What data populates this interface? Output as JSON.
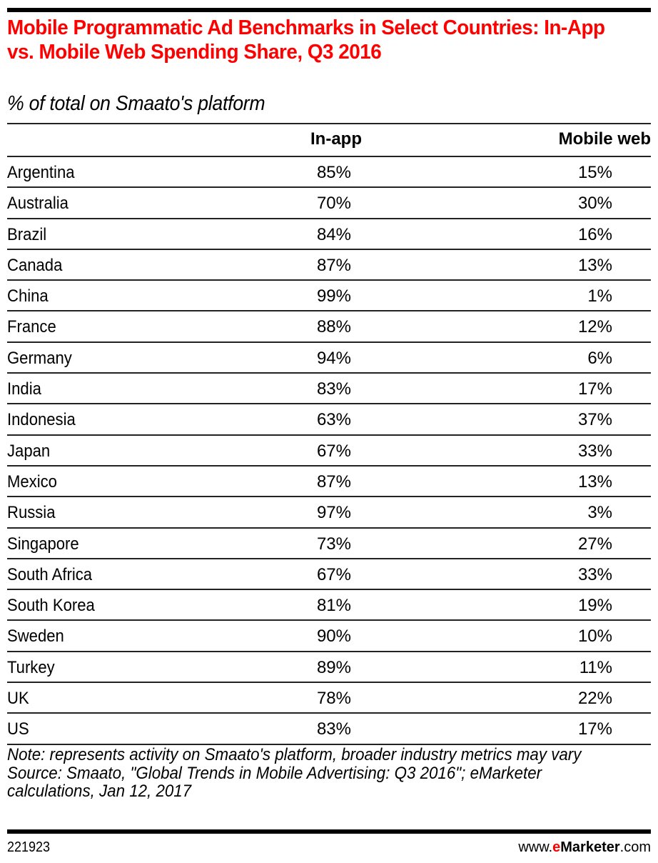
{
  "header": {
    "title": "Mobile Programmatic Ad Benchmarks in Select Countries: In-App vs. Mobile Web Spending Share, Q3 2016",
    "subtitle": "% of total on Smaato's platform"
  },
  "table": {
    "columns": [
      "",
      "In-app",
      "Mobile web"
    ],
    "rows": [
      {
        "country": "Argentina",
        "in_app": "85%",
        "mobile_web": "15%"
      },
      {
        "country": "Australia",
        "in_app": "70%",
        "mobile_web": "30%"
      },
      {
        "country": "Brazil",
        "in_app": "84%",
        "mobile_web": "16%"
      },
      {
        "country": "Canada",
        "in_app": "87%",
        "mobile_web": "13%"
      },
      {
        "country": "China",
        "in_app": "99%",
        "mobile_web": "1%"
      },
      {
        "country": "France",
        "in_app": "88%",
        "mobile_web": "12%"
      },
      {
        "country": "Germany",
        "in_app": "94%",
        "mobile_web": "6%"
      },
      {
        "country": "India",
        "in_app": "83%",
        "mobile_web": "17%"
      },
      {
        "country": "Indonesia",
        "in_app": "63%",
        "mobile_web": "37%"
      },
      {
        "country": "Japan",
        "in_app": "67%",
        "mobile_web": "33%"
      },
      {
        "country": "Mexico",
        "in_app": "87%",
        "mobile_web": "13%"
      },
      {
        "country": "Russia",
        "in_app": "97%",
        "mobile_web": "3%"
      },
      {
        "country": "Singapore",
        "in_app": "73%",
        "mobile_web": "27%"
      },
      {
        "country": "South Africa",
        "in_app": "67%",
        "mobile_web": "33%"
      },
      {
        "country": "South Korea",
        "in_app": "81%",
        "mobile_web": "19%"
      },
      {
        "country": "Sweden",
        "in_app": "90%",
        "mobile_web": "10%"
      },
      {
        "country": "Turkey",
        "in_app": "89%",
        "mobile_web": "11%"
      },
      {
        "country": "UK",
        "in_app": "78%",
        "mobile_web": "22%"
      },
      {
        "country": "US",
        "in_app": "83%",
        "mobile_web": "17%"
      }
    ]
  },
  "notes": {
    "note": "Note: represents activity on Smaato's platform, broader industry metrics may vary",
    "source": "Source: Smaato, \"Global Trends in Mobile Advertising: Q3 2016\"; eMarketer calculations, Jan 12, 2017"
  },
  "footer": {
    "chart_id": "221923",
    "brand_prefix": "www.",
    "brand_e": "e",
    "brand_name": "Marketer",
    "brand_suffix": ".com"
  },
  "colors": {
    "title": "#ff0000",
    "text": "#000000",
    "rules": "#000000"
  },
  "chart_data": {
    "type": "table",
    "title": "Mobile Programmatic Ad Benchmarks in Select Countries: In-App vs. Mobile Web Spending Share, Q3 2016",
    "subtitle": "% of total on Smaato's platform",
    "categories": [
      "Argentina",
      "Australia",
      "Brazil",
      "Canada",
      "China",
      "France",
      "Germany",
      "India",
      "Indonesia",
      "Japan",
      "Mexico",
      "Russia",
      "Singapore",
      "South Africa",
      "South Korea",
      "Sweden",
      "Turkey",
      "UK",
      "US"
    ],
    "series": [
      {
        "name": "In-app",
        "values": [
          85,
          70,
          84,
          87,
          99,
          88,
          94,
          83,
          63,
          67,
          87,
          97,
          73,
          67,
          81,
          90,
          89,
          78,
          83
        ]
      },
      {
        "name": "Mobile web",
        "values": [
          15,
          30,
          16,
          13,
          1,
          12,
          6,
          17,
          37,
          33,
          13,
          3,
          27,
          33,
          19,
          10,
          11,
          22,
          17
        ]
      }
    ],
    "unit": "%",
    "note": "Note: represents activity on Smaato's platform, broader industry metrics may vary",
    "source": "Source: Smaato, \"Global Trends in Mobile Advertising: Q3 2016\"; eMarketer calculations, Jan 12, 2017"
  }
}
